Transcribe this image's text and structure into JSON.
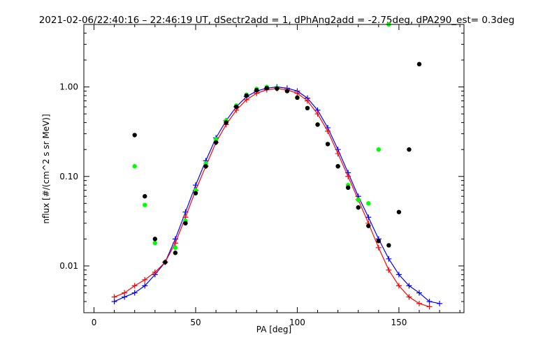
{
  "chart_data": {
    "type": "scatter",
    "title": "2021-02-06/22:40:16 – 22:46:19 UT, dSectr2add = 1, dPhAng2add = -2.75deg, dPA290_est=   0.3deg",
    "xlabel": "PA [deg]",
    "ylabel": "nflux [#/(cm^2 s sr MeV)]",
    "xlim": [
      -5,
      182
    ],
    "ylim": [
      0.003,
      5.0
    ],
    "yscale": "log",
    "xticks": [
      0,
      50,
      100,
      150
    ],
    "xtick_labels": [
      "0",
      "50",
      "100",
      "150"
    ],
    "yticks": [
      0.01,
      0.1,
      1.0
    ],
    "ytick_labels": [
      "0.01",
      "0.10",
      "1.00"
    ],
    "grid": false,
    "series": [
      {
        "color": "#0000ff",
        "style": "lines+plus",
        "x": [
          10,
          15,
          20,
          25,
          30,
          35,
          40,
          45,
          50,
          55,
          60,
          65,
          70,
          75,
          80,
          85,
          90,
          95,
          100,
          105,
          110,
          115,
          120,
          125,
          130,
          135,
          140,
          145,
          150,
          155,
          160,
          165,
          170
        ],
        "y": [
          0.004,
          0.0045,
          0.005,
          0.006,
          0.008,
          0.011,
          0.02,
          0.04,
          0.08,
          0.15,
          0.27,
          0.42,
          0.6,
          0.78,
          0.9,
          0.97,
          1.0,
          0.97,
          0.9,
          0.75,
          0.55,
          0.35,
          0.2,
          0.11,
          0.06,
          0.035,
          0.02,
          0.012,
          0.008,
          0.006,
          0.005,
          0.004,
          0.0038
        ]
      },
      {
        "color": "#ff0000",
        "style": "lines+plus",
        "x": [
          10,
          15,
          20,
          25,
          30,
          35,
          40,
          45,
          50,
          55,
          60,
          65,
          70,
          75,
          80,
          85,
          90,
          95,
          100,
          105,
          110,
          115,
          120,
          125,
          130,
          135,
          140,
          145,
          150,
          155,
          160,
          165
        ],
        "y": [
          0.0045,
          0.005,
          0.006,
          0.007,
          0.0085,
          0.011,
          0.018,
          0.035,
          0.07,
          0.13,
          0.24,
          0.38,
          0.55,
          0.72,
          0.85,
          0.93,
          0.96,
          0.93,
          0.85,
          0.7,
          0.5,
          0.32,
          0.18,
          0.1,
          0.055,
          0.03,
          0.016,
          0.009,
          0.006,
          0.0045,
          0.0038,
          0.0035
        ]
      },
      {
        "color": "#00ff00",
        "style": "dots",
        "x": [
          20,
          25,
          30,
          35,
          40,
          45,
          50,
          55,
          60,
          65,
          70,
          75,
          80,
          85,
          90,
          95,
          100,
          105,
          110,
          115,
          120,
          125,
          130,
          135,
          140,
          145
        ],
        "y": [
          0.13,
          0.048,
          0.018,
          0.011,
          0.016,
          0.032,
          0.07,
          0.14,
          0.26,
          0.42,
          0.62,
          0.82,
          0.95,
          1.0,
          0.98,
          0.9,
          0.76,
          0.58,
          0.38,
          0.23,
          0.13,
          0.08,
          0.055,
          0.05,
          0.2,
          5.0
        ]
      },
      {
        "color": "#000000",
        "style": "dots",
        "x": [
          20,
          25,
          30,
          35,
          40,
          45,
          50,
          55,
          60,
          65,
          70,
          75,
          80,
          85,
          90,
          95,
          100,
          105,
          110,
          115,
          120,
          125,
          130,
          135,
          140,
          145,
          150,
          155,
          160
        ],
        "y": [
          0.29,
          0.06,
          0.02,
          0.011,
          0.014,
          0.03,
          0.065,
          0.13,
          0.24,
          0.4,
          0.6,
          0.8,
          0.92,
          0.97,
          0.96,
          0.9,
          0.76,
          0.58,
          0.38,
          0.23,
          0.13,
          0.075,
          0.045,
          0.028,
          0.019,
          0.017,
          0.04,
          0.2,
          1.8
        ]
      }
    ]
  }
}
